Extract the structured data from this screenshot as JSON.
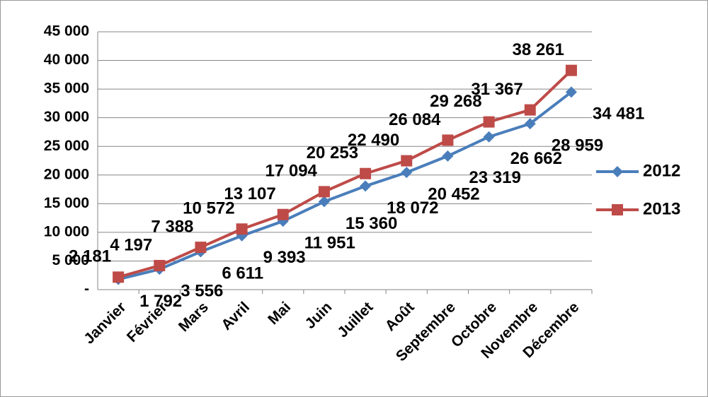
{
  "chart_data": {
    "type": "line",
    "categories": [
      "Janvier",
      "Février",
      "Mars",
      "Avril",
      "Mai",
      "Juin",
      "Juillet",
      "Août",
      "Septembre",
      "Octobre",
      "Novembre",
      "Décembre"
    ],
    "series": [
      {
        "name": "2012",
        "color": "#4a7ebb",
        "marker": "diamond",
        "values": [
          1792,
          3556,
          6611,
          9393,
          11951,
          15360,
          18072,
          20452,
          23319,
          26662,
          28959,
          34481
        ],
        "value_labels": [
          "1 792",
          "3 556",
          "6 611",
          "9 393",
          "11 951",
          "15 360",
          "18 072",
          "20 452",
          "23 319",
          "26 662",
          "28 959",
          "34 481"
        ]
      },
      {
        "name": "2013",
        "color": "#be4b48",
        "marker": "square",
        "values": [
          2181,
          4197,
          7388,
          10572,
          13107,
          17094,
          20253,
          22490,
          26084,
          29268,
          31367,
          38261
        ],
        "value_labels": [
          "2 181",
          "4 197",
          "7 388",
          "10 572",
          "13 107",
          "17 094",
          "20 253",
          "22 490",
          "26 084",
          "29 268",
          "31 367",
          "38 261"
        ]
      }
    ],
    "ylim": [
      0,
      45000
    ],
    "yticks": [
      {
        "value": 0,
        "label": "-"
      },
      {
        "value": 5000,
        "label": "5 000"
      },
      {
        "value": 10000,
        "label": "10 000"
      },
      {
        "value": 15000,
        "label": "15 000"
      },
      {
        "value": 20000,
        "label": "20 000"
      },
      {
        "value": 25000,
        "label": "25 000"
      },
      {
        "value": 30000,
        "label": "30 000"
      },
      {
        "value": 35000,
        "label": "35 000"
      },
      {
        "value": 40000,
        "label": "40 000"
      },
      {
        "value": 45000,
        "label": "45 000"
      }
    ],
    "grid": true,
    "legend": "right"
  }
}
